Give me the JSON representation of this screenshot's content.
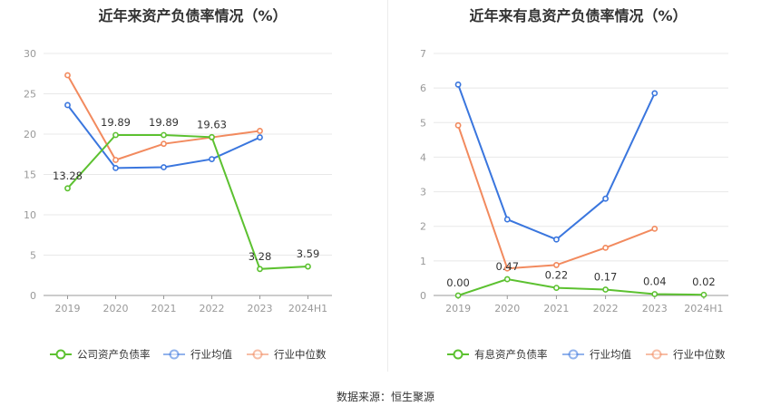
{
  "source_text": "数据来源：恒生聚源",
  "chart_data": [
    {
      "type": "line",
      "title": "近年来资产负债率情况（%）",
      "categories": [
        "2019",
        "2020",
        "2021",
        "2022",
        "2023",
        "2024H1"
      ],
      "ylim": [
        0,
        30
      ],
      "yticks": [
        0,
        5,
        10,
        15,
        20,
        25,
        30
      ],
      "grid": true,
      "legend_position": "bottom",
      "series": [
        {
          "name": "公司资产负债率",
          "color": "#5cc130",
          "values": [
            13.28,
            19.89,
            19.89,
            19.63,
            3.28,
            3.59
          ],
          "labels": [
            "13.28",
            "19.89",
            "19.89",
            "19.63",
            "3.28",
            "3.59"
          ]
        },
        {
          "name": "行业均值",
          "color": "#3a76de",
          "values": [
            23.6,
            15.8,
            15.9,
            16.9,
            19.6,
            null
          ]
        },
        {
          "name": "行业中位数",
          "color": "#f28a5e",
          "values": [
            27.3,
            16.8,
            18.8,
            19.6,
            20.4,
            null
          ]
        }
      ]
    },
    {
      "type": "line",
      "title": "近年来有息资产负债率情况（%）",
      "categories": [
        "2019",
        "2020",
        "2021",
        "2022",
        "2023",
        "2024H1"
      ],
      "ylim": [
        0,
        7
      ],
      "yticks": [
        0,
        1,
        2,
        3,
        4,
        5,
        6,
        7
      ],
      "grid": true,
      "legend_position": "bottom",
      "series": [
        {
          "name": "有息资产负债率",
          "color": "#5cc130",
          "values": [
            0.0,
            0.47,
            0.22,
            0.17,
            0.04,
            0.02
          ],
          "labels": [
            "0.00",
            "0.47",
            "0.22",
            "0.17",
            "0.04",
            "0.02"
          ]
        },
        {
          "name": "行业均值",
          "color": "#3a76de",
          "values": [
            6.1,
            2.2,
            1.62,
            2.8,
            5.85,
            null
          ]
        },
        {
          "name": "行业中位数",
          "color": "#f28a5e",
          "values": [
            4.92,
            0.78,
            0.88,
            1.38,
            1.93,
            null
          ]
        }
      ]
    }
  ]
}
